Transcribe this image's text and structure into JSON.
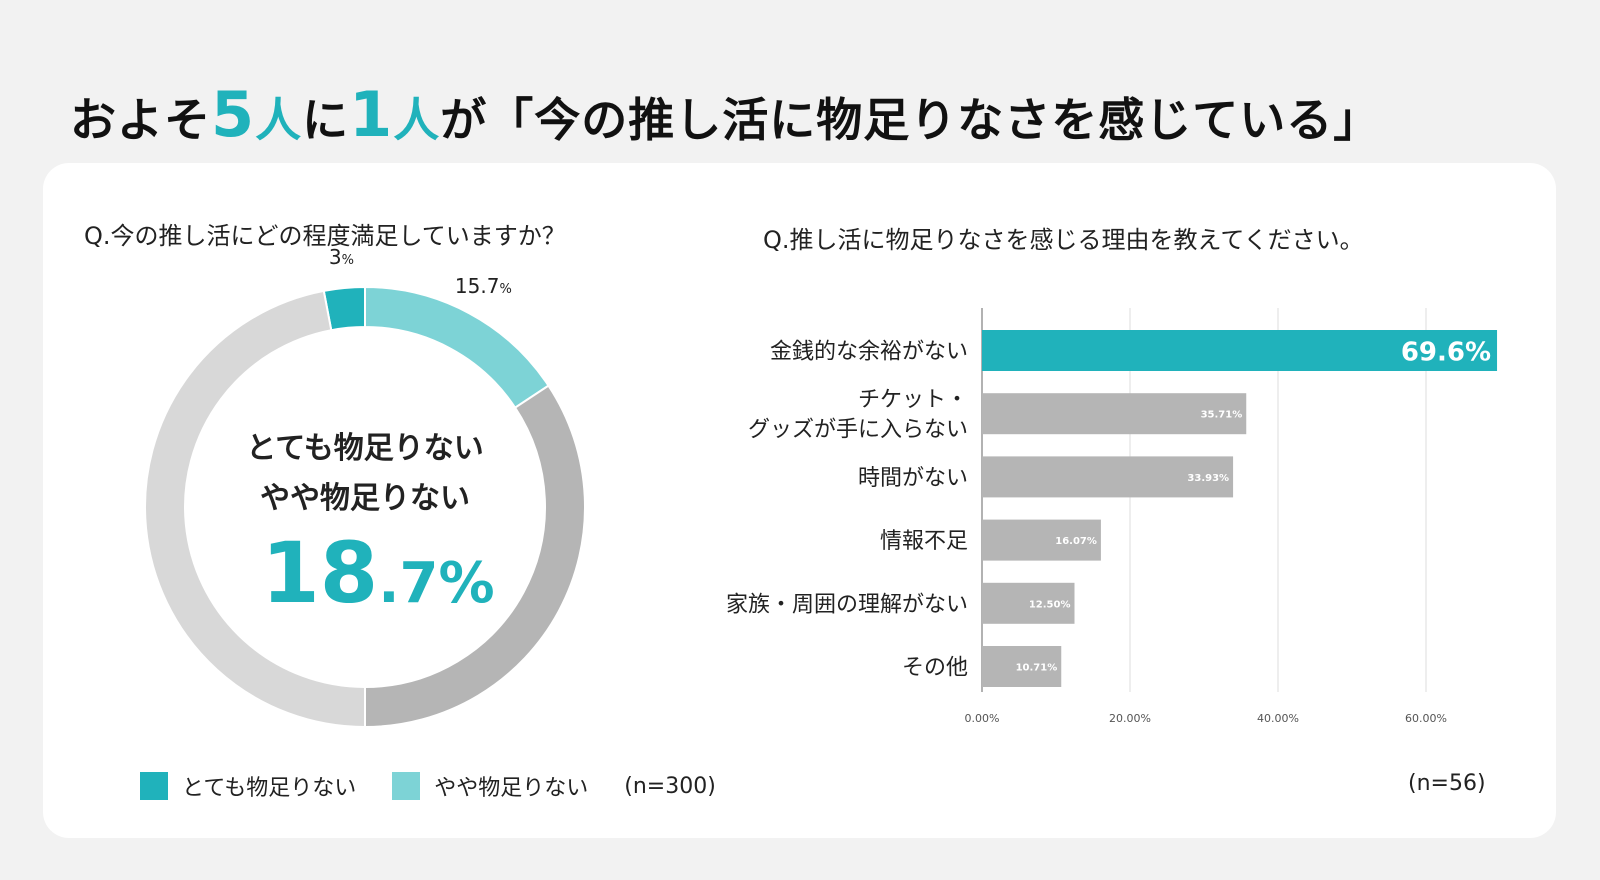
{
  "headline": {
    "part1": "およそ",
    "num1": "5",
    "unit1": "人",
    "part2": "に",
    "num2": "1",
    "unit2": "人",
    "part3": "が「今の推し活に物足りなさを感じている」"
  },
  "colors": {
    "accent": "#20b2bb",
    "accent_light": "#7dd3d6",
    "gray_dark": "#b5b5b5",
    "gray_light": "#d8d8d8"
  },
  "left": {
    "question": "Q.今の推し活にどの程度満足していますか？",
    "center_line1": "とても物足りない",
    "center_line2": "やや物足りない",
    "center_value_int": "18",
    "center_value_dec": ".7%",
    "n_label": "(n=300)"
  },
  "right": {
    "question": "Q.推し活に物足りなさを感じる理由を教えてください。",
    "n_label": "(n=56)"
  },
  "chart_data": [
    {
      "type": "pie",
      "slices": [
        {
          "label": "とても物足りない",
          "value": 3,
          "value_label": "3",
          "unit": "%",
          "color": "#20b2bb"
        },
        {
          "label": "やや物足りない",
          "value": 15.7,
          "value_label": "15.7",
          "unit": "%",
          "color": "#7dd3d6"
        },
        {
          "label": "",
          "value": 34.3,
          "value_label": "",
          "unit": "",
          "color": "#b5b5b5"
        },
        {
          "label": "",
          "value": 47,
          "value_label": "",
          "unit": "",
          "color": "#d8d8d8"
        }
      ],
      "legend": [
        "とても物足りない",
        "やや物足りない"
      ],
      "legend_position": "bottom"
    },
    {
      "type": "bar",
      "orientation": "horizontal",
      "categories": [
        [
          "金銭的な余裕がない"
        ],
        [
          "チケット・",
          "グッズが手に入らない"
        ],
        [
          "時間がない"
        ],
        [
          "情報不足"
        ],
        [
          "家族・周囲の理解がない"
        ],
        [
          "その他"
        ]
      ],
      "values": [
        69.6,
        35.71,
        33.93,
        16.07,
        12.5,
        10.71
      ],
      "value_labels": [
        "69.6%",
        "35.71%",
        "33.93%",
        "16.07%",
        "12.50%",
        "10.71%"
      ],
      "highlight_index": 0,
      "xlim": [
        0,
        70
      ],
      "xticks": [
        0,
        20,
        40,
        60
      ],
      "xtick_labels": [
        "0.00%",
        "20.00%",
        "40.00%",
        "60.00%"
      ],
      "grid": true
    }
  ]
}
